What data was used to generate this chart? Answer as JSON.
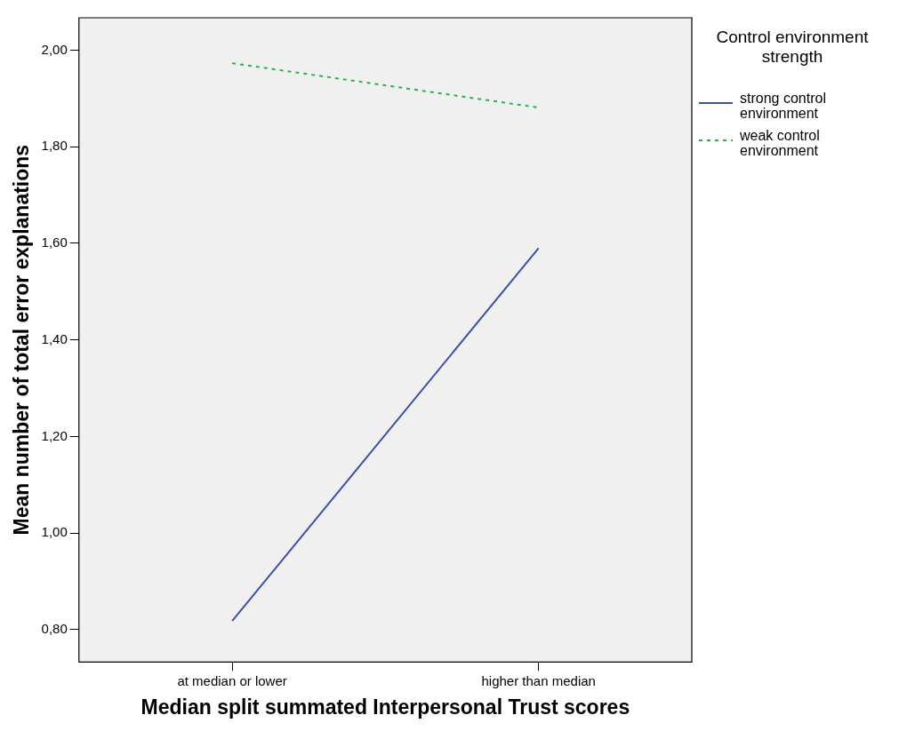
{
  "chart_data": {
    "type": "line",
    "xlabel": "Median split summated Interpersonal Trust scores",
    "ylabel": "Mean number of total error explanations",
    "legend_title": "Control environment strength",
    "legend": "top right",
    "grid": false,
    "marker": "none",
    "categories": [
      "at median or lower",
      "higher than median"
    ],
    "ylim": [
      0.733,
      2.067
    ],
    "yticks": [
      {
        "value": 0.8,
        "label": "0,80"
      },
      {
        "value": 1.0,
        "label": "1,00"
      },
      {
        "value": 1.2,
        "label": "1,20"
      },
      {
        "value": 1.4,
        "label": "1,40"
      },
      {
        "value": 1.6,
        "label": "1,60"
      },
      {
        "value": 1.8,
        "label": "1,80"
      },
      {
        "value": 2.0,
        "label": "2,00"
      }
    ],
    "series": [
      {
        "name": "strong control environment",
        "color": "#3a4fae",
        "line_style": "solid",
        "values": [
          0.818,
          1.59
        ]
      },
      {
        "name": "weak control environment",
        "color": "#2bb24c",
        "line_style": "dashed",
        "values": [
          1.973,
          1.881
        ]
      }
    ]
  }
}
